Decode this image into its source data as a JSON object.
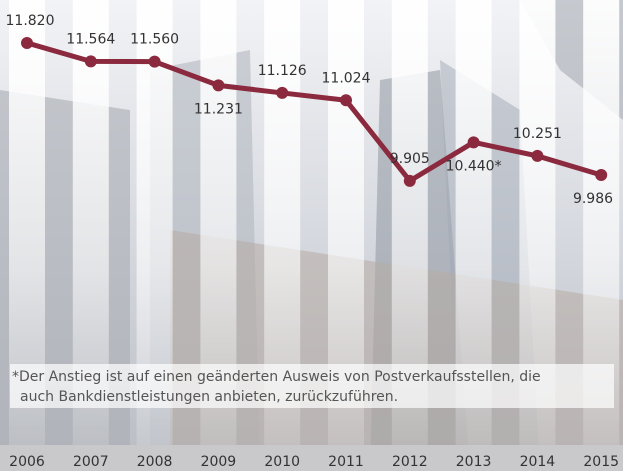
{
  "chart_data": {
    "type": "line",
    "categories": [
      "2006",
      "2007",
      "2008",
      "2009",
      "2010",
      "2011",
      "2012",
      "2013",
      "2014",
      "2015"
    ],
    "values": [
      11820,
      11564,
      11560,
      11231,
      11126,
      11024,
      9905,
      10440,
      10251,
      9986
    ],
    "value_labels": [
      "11.820",
      "11.564",
      "11.560",
      "11.231",
      "11.126",
      "11.024",
      "9.905",
      "10.440*",
      "10.251",
      "9.986"
    ],
    "color": "#8b2a3e",
    "ylim": [
      9500,
      12000
    ],
    "footnote": [
      "*Der Anstieg ist auf einen geänderten Ausweis von Postverkaufsstellen, die",
      "auch Bankdienstleistungen anbieten, zurückzuführen."
    ]
  }
}
